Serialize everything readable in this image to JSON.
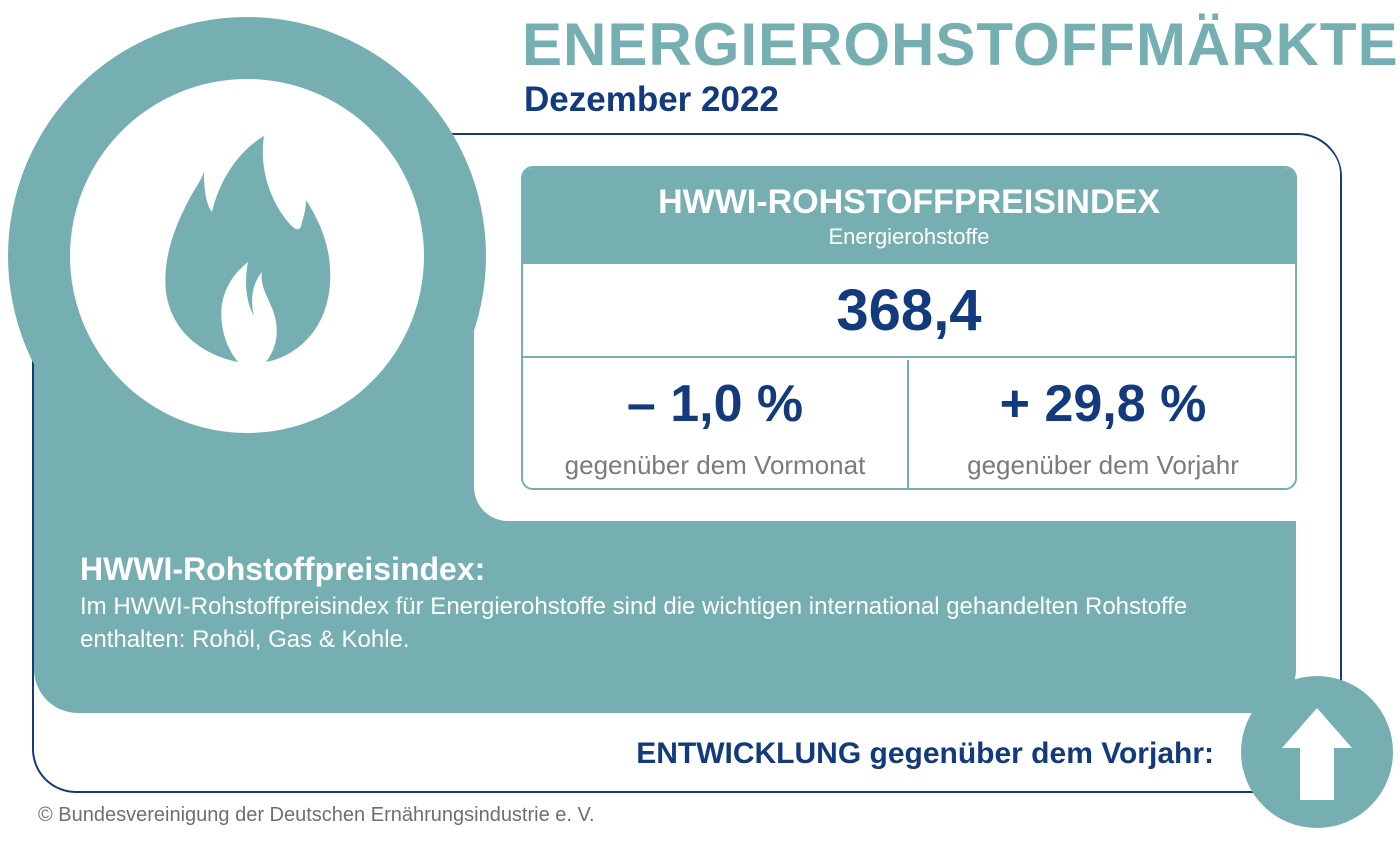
{
  "header": {
    "title": "ENERGIEROHSTOFFMÄRKTE",
    "subtitle": "Dezember 2022"
  },
  "index_box": {
    "heading": "HWWI-ROHSTOFFPREISINDEX",
    "subheading": "Energierohstoffe",
    "value": "368,4",
    "month_change": "– 1,0 %",
    "month_caption": "gegenüber dem Vormonat",
    "year_change": "+ 29,8 %",
    "year_caption": "gegenüber dem Vorjahr"
  },
  "description": {
    "title": "HWWI-Rohstoffpreisindex:",
    "text": "Im HWWI-Rohstoffpreisindex für Energierohstoffe sind die wichtigen international gehandelten Rohstoffe enthalten: Rohöl, Gas & Kohle."
  },
  "development": {
    "label": "ENTWICKLUNG gegenüber dem Vorjahr:",
    "direction_icon": "arrow-up-icon"
  },
  "main_icon": "flame-icon",
  "footer": {
    "copyright": "© Bundesvereinigung der Deutschen Ernährungsindustrie e. V."
  },
  "colors": {
    "teal": "#76afb1",
    "navy": "#123a7c",
    "gray_text": "#7b7b7b"
  }
}
